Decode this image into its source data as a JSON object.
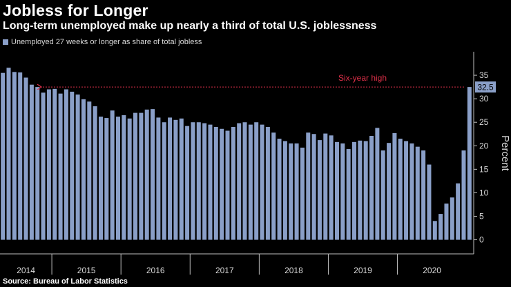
{
  "header": {
    "title": "Jobless for Longer",
    "subtitle": "Long-term unemployed make up nearly a third of total U.S. joblessness"
  },
  "legend": {
    "label": "Unemployed 27 weeks or longer as share of total jobless"
  },
  "footer": {
    "source": "Source: Bureau of Labor Statistics"
  },
  "colors": {
    "bar": "#8a9fc8",
    "annotation": "#e0304a",
    "callout_bg": "#8a9fc8",
    "axis": "#bfbfbf"
  },
  "chart_data": {
    "type": "bar",
    "title": "Jobless for Longer",
    "ylabel": "Percent",
    "xlabel": "",
    "ylim": [
      -3,
      40
    ],
    "yticks": [
      0,
      5,
      10,
      15,
      20,
      25,
      30,
      35
    ],
    "y_tick_labels": [
      "0",
      "5",
      "10",
      "15",
      "20",
      "25",
      "30",
      "35"
    ],
    "grid": false,
    "legend_position": "top-left",
    "x_year_labels": [
      "2014",
      "2015",
      "2016",
      "2017",
      "2018",
      "2019",
      "2020"
    ],
    "series": [
      {
        "name": "Unemployed 27 weeks or longer as share of total jobless",
        "values": [
          35.5,
          36.6,
          35.7,
          35.6,
          34.5,
          33.0,
          32.5,
          31.3,
          32.0,
          32.1,
          31.1,
          32.0,
          31.5,
          30.9,
          29.9,
          29.4,
          28.4,
          26.2,
          25.9,
          27.5,
          26.2,
          26.5,
          25.8,
          27.0,
          27.0,
          27.7,
          27.8,
          26.0,
          25.0,
          26.0,
          25.5,
          25.8,
          24.2,
          25.0,
          25.0,
          24.8,
          24.5,
          24.0,
          23.6,
          23.2,
          24.0,
          24.8,
          25.0,
          24.5,
          25.0,
          24.5,
          24.0,
          22.8,
          21.5,
          21.0,
          20.5,
          20.5,
          19.6,
          22.8,
          22.5,
          21.2,
          22.6,
          22.2,
          20.8,
          20.5,
          19.3,
          20.8,
          21.1,
          21.0,
          22.1,
          23.8,
          19.0,
          20.6,
          22.7,
          21.5,
          21.0,
          20.5,
          19.8,
          19.0,
          16.0,
          4.0,
          5.5,
          7.7,
          9.0,
          12.0,
          19.0,
          32.5
        ]
      }
    ],
    "annotations": [
      {
        "text": "Six-year high",
        "y": 32.5
      }
    ],
    "callout": {
      "label": "32.5",
      "value": 32.5
    }
  }
}
